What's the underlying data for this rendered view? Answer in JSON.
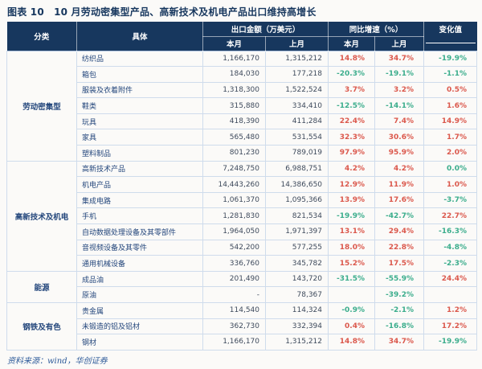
{
  "title": "图表 10　10 月劳动密集型产品、高新技术及机电产品出口维持高增长",
  "footer": "资料来源：wind，华创证券",
  "colors": {
    "header_bg": "#17375E",
    "header_text": "#FFFFFF",
    "positive_red": "#DB584C",
    "negative_green": "#3BAD8C",
    "title_text": "#17375E",
    "item_text": "#24477C",
    "number_text": "#3E4A5C",
    "grid_line": "#CFDCEC",
    "source_text": "#2E5B9A"
  },
  "table": {
    "headers": {
      "category": "分类",
      "detail": "具体",
      "export_amount": "出口金额（万美元）",
      "yoy_growth": "同比增速（%）",
      "change_value": "变化值",
      "this_month": "本月",
      "last_month": "上月"
    },
    "groups": [
      {
        "category": "劳动密集型",
        "rows": [
          {
            "name": "纺织品",
            "cur": "1,166,170",
            "prev": "1,315,212",
            "yoy_cur": "14.8%",
            "yoy_prev": "34.7%",
            "chg": "-19.9%"
          },
          {
            "name": "箱包",
            "cur": "184,030",
            "prev": "177,218",
            "yoy_cur": "-20.3%",
            "yoy_prev": "-19.1%",
            "chg": "-1.1%"
          },
          {
            "name": "服装及衣着附件",
            "cur": "1,318,300",
            "prev": "1,522,524",
            "yoy_cur": "3.7%",
            "yoy_prev": "3.2%",
            "chg": "0.5%"
          },
          {
            "name": "鞋类",
            "cur": "315,880",
            "prev": "334,410",
            "yoy_cur": "-12.5%",
            "yoy_prev": "-14.1%",
            "chg": "1.6%"
          },
          {
            "name": "玩具",
            "cur": "418,390",
            "prev": "411,284",
            "yoy_cur": "22.4%",
            "yoy_prev": "7.4%",
            "chg": "14.9%"
          },
          {
            "name": "家具",
            "cur": "565,480",
            "prev": "531,554",
            "yoy_cur": "32.3%",
            "yoy_prev": "30.6%",
            "chg": "1.7%"
          },
          {
            "name": "塑料制品",
            "cur": "801,230",
            "prev": "789,019",
            "yoy_cur": "97.9%",
            "yoy_prev": "95.9%",
            "chg": "2.0%"
          }
        ]
      },
      {
        "category": "高新技术及机电",
        "rows": [
          {
            "name": "高新技术产品",
            "cur": "7,248,750",
            "prev": "6,988,751",
            "yoy_cur": "4.2%",
            "yoy_prev": "4.2%",
            "chg": "0.0%"
          },
          {
            "name": "机电产品",
            "cur": "14,443,260",
            "prev": "14,386,650",
            "yoy_cur": "12.9%",
            "yoy_prev": "11.9%",
            "chg": "1.0%"
          },
          {
            "name": "集成电路",
            "cur": "1,061,370",
            "prev": "1,095,366",
            "yoy_cur": "13.9%",
            "yoy_prev": "17.6%",
            "chg": "-3.7%"
          },
          {
            "name": "手机",
            "cur": "1,281,830",
            "prev": "821,534",
            "yoy_cur": "-19.9%",
            "yoy_prev": "-42.7%",
            "chg": "22.7%"
          },
          {
            "name": "自动数据处理设备及其零部件",
            "cur": "1,964,050",
            "prev": "1,971,397",
            "yoy_cur": "13.1%",
            "yoy_prev": "29.4%",
            "chg": "-16.3%"
          },
          {
            "name": "音视频设备及其零件",
            "cur": "542,200",
            "prev": "577,255",
            "yoy_cur": "18.0%",
            "yoy_prev": "22.8%",
            "chg": "-4.8%"
          },
          {
            "name": "通用机械设备",
            "cur": "336,760",
            "prev": "345,782",
            "yoy_cur": "15.2%",
            "yoy_prev": "17.5%",
            "chg": "-2.3%"
          }
        ]
      },
      {
        "category": "能源",
        "rows": [
          {
            "name": "成品油",
            "cur": "201,490",
            "prev": "143,720",
            "yoy_cur": "-31.5%",
            "yoy_prev": "-55.9%",
            "chg": "24.4%"
          },
          {
            "name": "原油",
            "cur": "-",
            "prev": "78,367",
            "yoy_cur": "",
            "yoy_prev": "-39.2%",
            "chg": ""
          }
        ]
      },
      {
        "category": "钢铁及有色",
        "rows": [
          {
            "name": "贵金属",
            "cur": "114,540",
            "prev": "114,324",
            "yoy_cur": "-0.9%",
            "yoy_prev": "-2.1%",
            "chg": "1.2%"
          },
          {
            "name": "未锻造的铝及铝材",
            "cur": "362,730",
            "prev": "332,394",
            "yoy_cur": "0.4%",
            "yoy_prev": "-16.8%",
            "chg": "17.2%"
          },
          {
            "name": "钢材",
            "cur": "1,166,170",
            "prev": "1,315,212",
            "yoy_cur": "14.8%",
            "yoy_prev": "34.7%",
            "chg": "-19.9%"
          }
        ]
      }
    ]
  }
}
